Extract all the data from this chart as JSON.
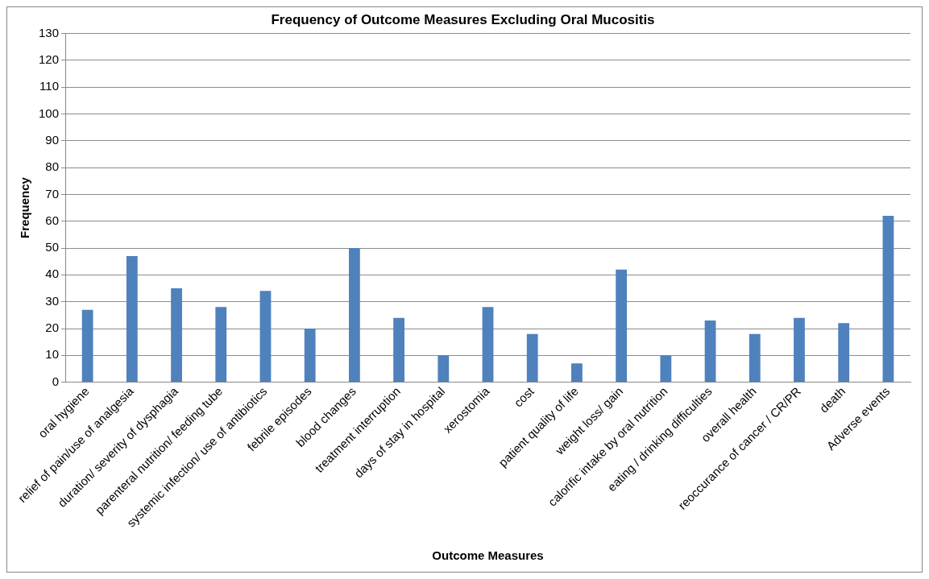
{
  "chart_data": {
    "type": "bar",
    "title": "Frequency of Outcome Measures Excluding Oral Mucositis",
    "xlabel": "Outcome Measures",
    "ylabel": "Frequency",
    "categories": [
      "oral hygiene",
      "relief of pain/use of analgesia",
      "duration/ severity of dysphagia",
      "parenteral nutrition/ feeding tube",
      "systemic infection/ use of antibiotics",
      "febrile episodes",
      "blood changes",
      "treatment interruption",
      "days of stay in hospital",
      "xerostomia",
      "cost",
      "patient quality of life",
      "weight loss/ gain",
      "calorific intake by oral nutrition",
      "eating / drinking difficulties",
      "overall health",
      "reoccurance of cancer / CR/PR",
      "death",
      "Adverse events"
    ],
    "values": [
      27,
      47,
      35,
      28,
      34,
      20,
      50,
      24,
      10,
      28,
      18,
      7,
      42,
      10,
      23,
      18,
      24,
      22,
      62
    ],
    "color": "#4f81bd",
    "ylim": [
      0,
      130
    ],
    "yticks": [
      0,
      10,
      20,
      30,
      40,
      50,
      60,
      70,
      80,
      90,
      100,
      110,
      120,
      130
    ],
    "grid": "y",
    "legend": false
  }
}
